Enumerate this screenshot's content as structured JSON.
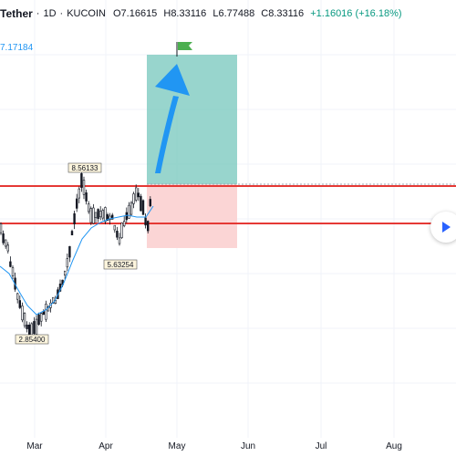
{
  "legend": {
    "symbol": "Tether",
    "interval": "1D",
    "exchange": "KUCOIN",
    "open": "O7.16615",
    "high": "H8.33116",
    "low": "L6.77488",
    "close": "C8.33116",
    "change": "+1.16016 (+16.18%)"
  },
  "ma_value": "7.17184",
  "colors": {
    "up": "#26a69a",
    "down": "#ef5350",
    "candle": "#131722",
    "ma": "#2196f3",
    "level_line": "#e53935",
    "target_zone": "#7ecbc0",
    "stop_zone": "#fbd5d5",
    "flag": "#4caf50",
    "arrow": "#2196f3"
  },
  "annotations": {
    "high_label": "8.56133",
    "mid_low_label": "5.63254",
    "low_label": "2.85400"
  },
  "time_axis": [
    "Mar",
    "Apr",
    "May",
    "Jun",
    "Jul",
    "Aug"
  ],
  "icons": {
    "flag": "flag-icon",
    "scroll": "scroll-to-realtime-icon"
  }
}
